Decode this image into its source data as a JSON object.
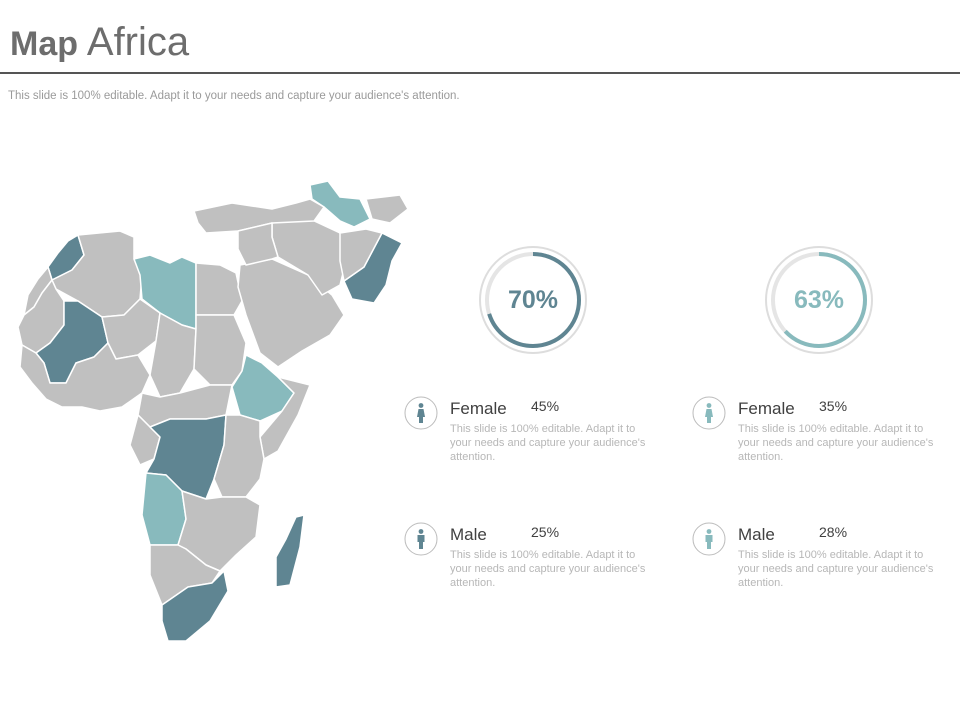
{
  "header": {
    "title_bold": "Map",
    "title_regular": "Africa",
    "subtitle": "This slide is 100% editable. Adapt it to your needs and capture your audience's attention."
  },
  "colors": {
    "dark_teal": "#5f8592",
    "light_teal": "#88babd",
    "gray_country": "#c0c0c0",
    "text": "#404040",
    "muted_text": "#b7b7b7"
  },
  "rings": [
    {
      "value": "70%",
      "fraction": 0.7,
      "color": "#5f8592"
    },
    {
      "value": "63%",
      "fraction": 0.63,
      "color": "#88babd"
    }
  ],
  "stats": [
    {
      "icon": "female-icon",
      "label": "Female",
      "value": "45%",
      "desc": "This slide is 100% editable. Adapt it to your needs and capture your audience's attention.",
      "color": "#5f8592"
    },
    {
      "icon": "female-icon",
      "label": "Female",
      "value": "35%",
      "desc": "This slide is 100% editable. Adapt it to your needs and capture your audience's attention.",
      "color": "#88babd"
    },
    {
      "icon": "male-icon",
      "label": "Male",
      "value": "25%",
      "desc": "This slide is 100% editable. Adapt it to your needs and capture your audience's attention.",
      "color": "#5f8592"
    },
    {
      "icon": "male-icon",
      "label": "Male",
      "value": "28%",
      "desc": "This slide is 100% editable. Adapt it to your needs and capture your audience's attention.",
      "color": "#88babd"
    }
  ]
}
